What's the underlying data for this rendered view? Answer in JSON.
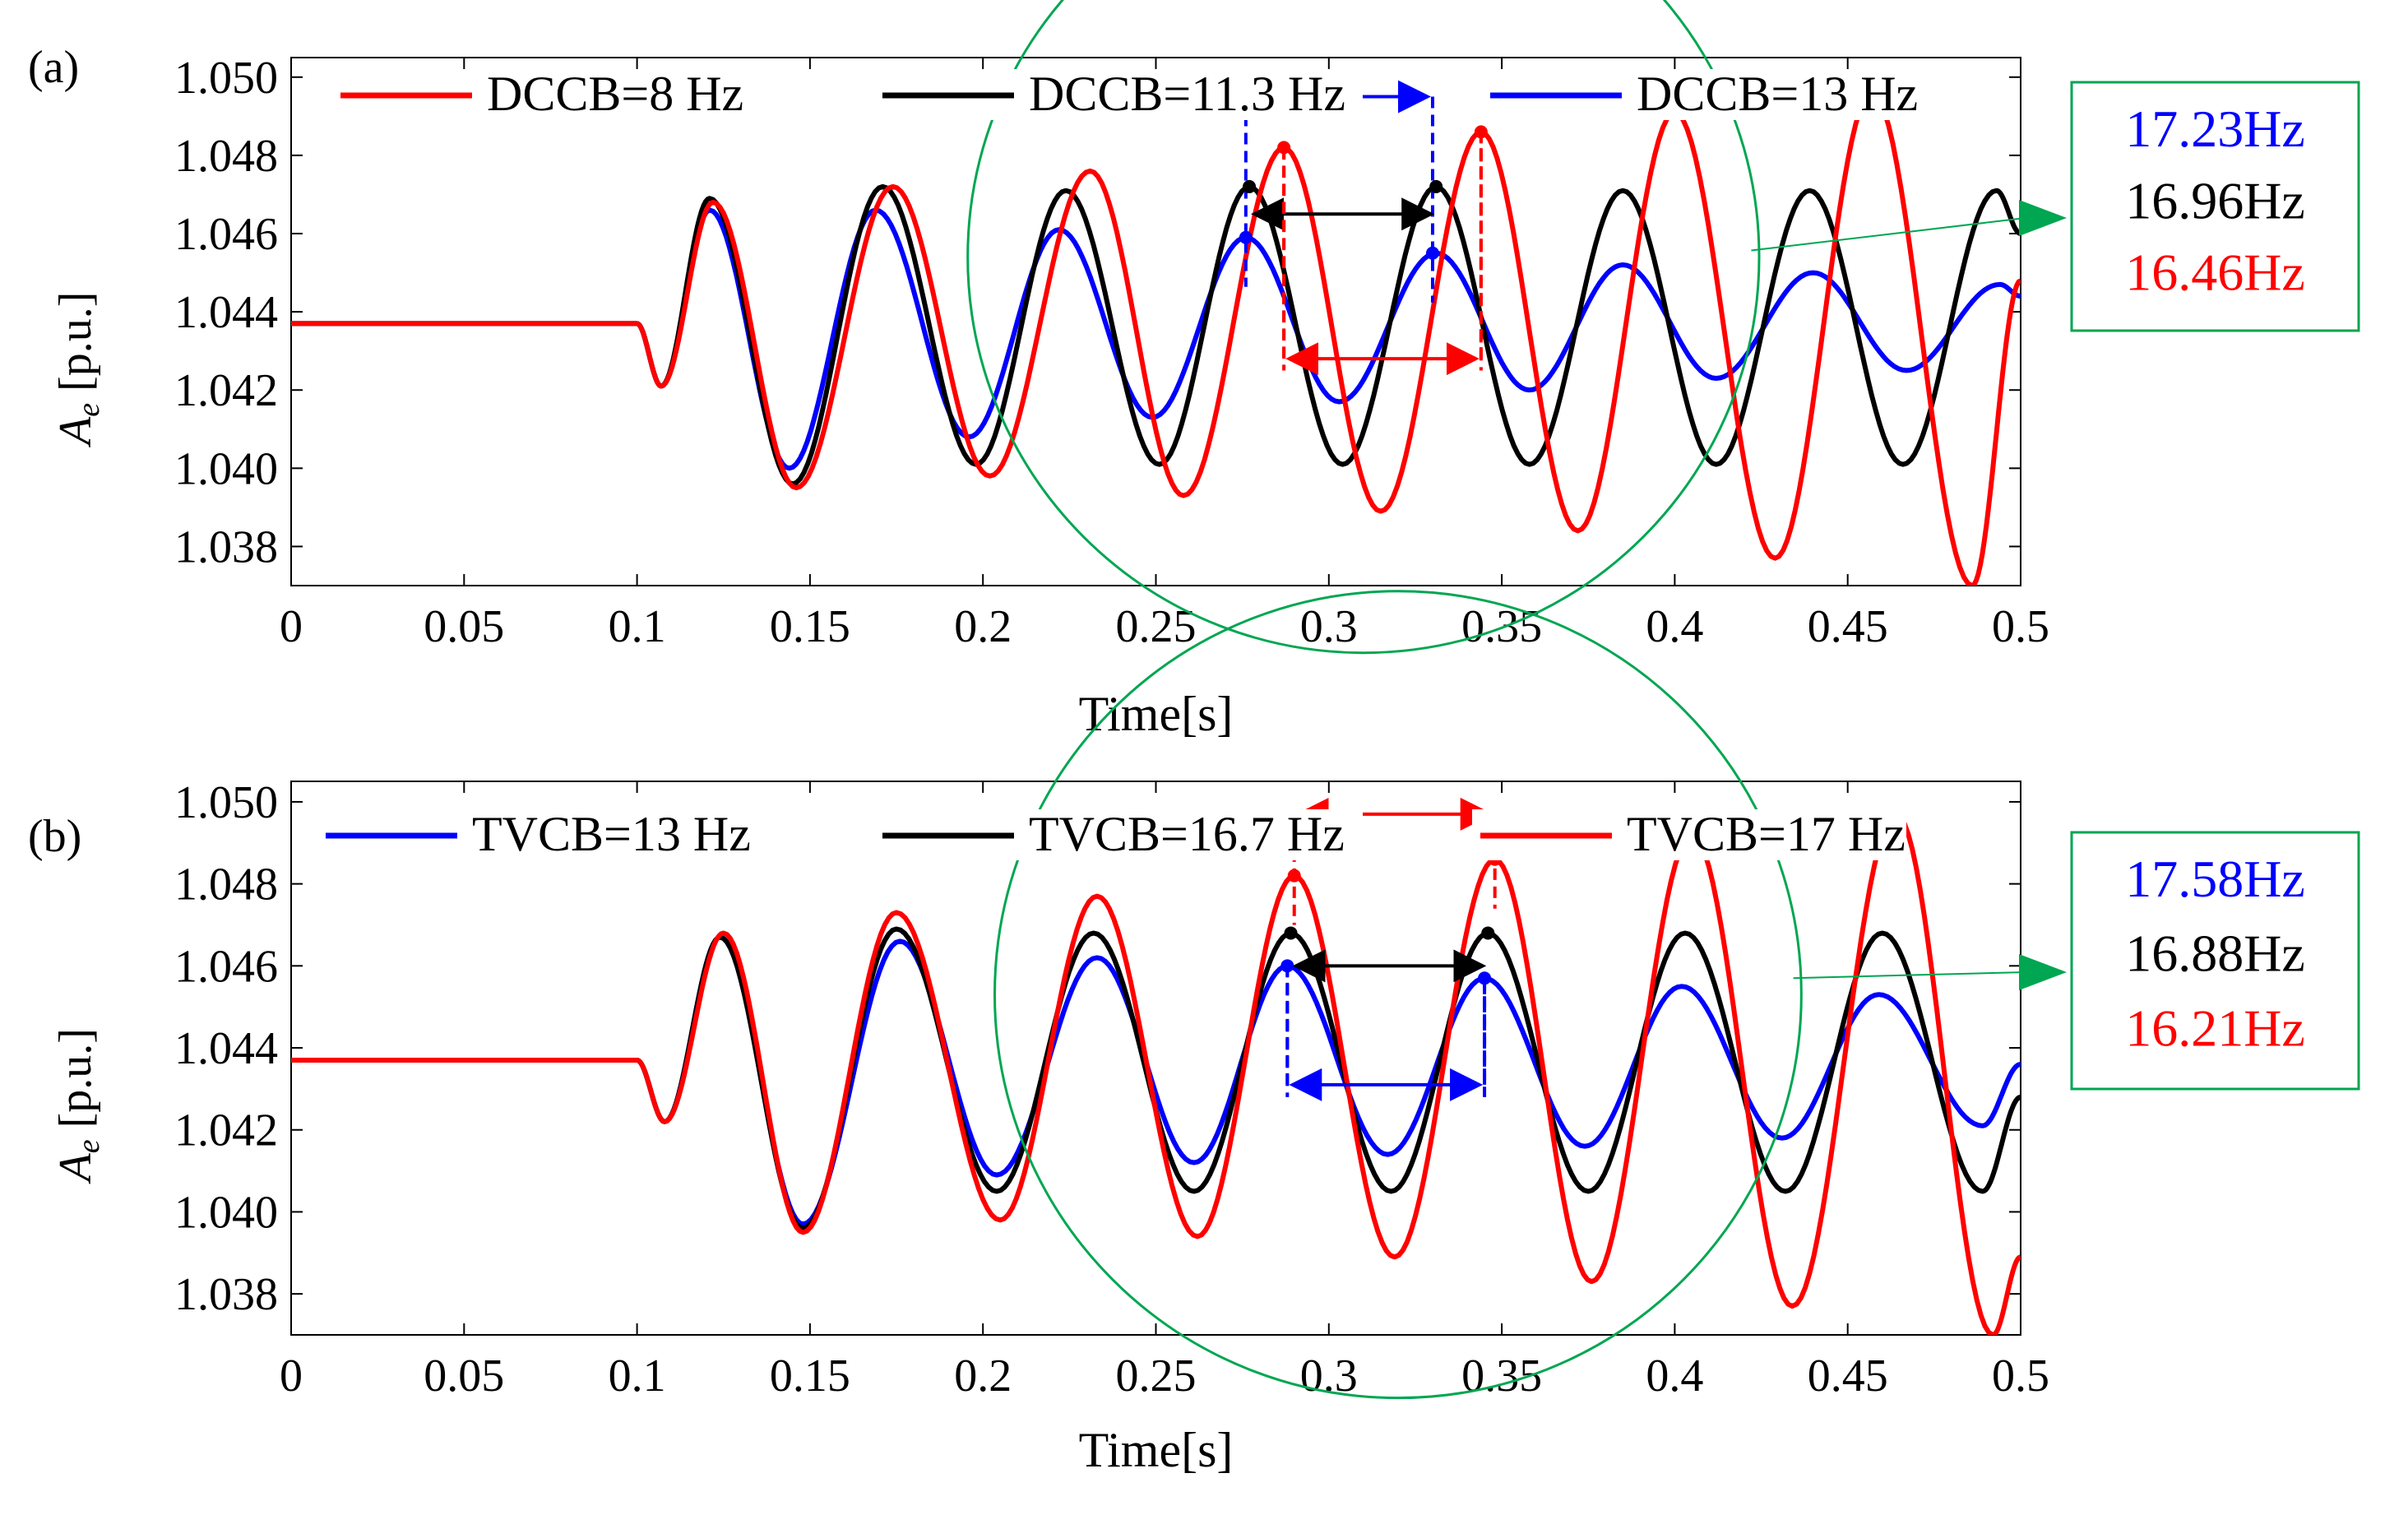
{
  "colors": {
    "red": "#ff0000",
    "black": "#000000",
    "blue": "#0000ff",
    "green": "#00a651",
    "axis": "#000000"
  },
  "chart_data": [
    {
      "panel_label": "(a)",
      "type": "line",
      "xlabel": "Time[s]",
      "ylabel_main": "A",
      "ylabel_sub": "e",
      "ylabel_unit": " [p.u.]",
      "xlim": [
        0,
        0.5
      ],
      "ylim": [
        1.037,
        1.0505
      ],
      "xticks": [
        0,
        0.05,
        0.1,
        0.15,
        0.2,
        0.25,
        0.3,
        0.35,
        0.4,
        0.45,
        0.5
      ],
      "xtick_labels": [
        "0",
        "0.05",
        "0.1",
        "0.15",
        "0.2",
        "0.25",
        "0.3",
        "0.35",
        "0.4",
        "0.45",
        "0.5"
      ],
      "yticks": [
        1.038,
        1.04,
        1.042,
        1.044,
        1.046,
        1.048,
        1.05
      ],
      "ytick_labels": [
        "1.038",
        "1.040",
        "1.042",
        "1.044",
        "1.046",
        "1.048",
        "1.050"
      ],
      "series": [
        {
          "name": "DCCB=8 Hz",
          "color": "red",
          "legend_order": 0,
          "draw_order": 2,
          "steady": 1.0437,
          "onset": 0.1,
          "dip": 1.0421,
          "dip_t": 0.107,
          "peaks": [
            [
              0.122,
              1.0468
            ],
            [
              0.174,
              1.0472
            ],
            [
              0.231,
              1.0476
            ],
            [
              0.287,
              1.0482
            ],
            [
              0.344,
              1.0486
            ],
            [
              0.4,
              1.0491
            ],
            [
              0.457,
              1.0496
            ]
          ],
          "troughs": [
            [
              0.146,
              1.0395
            ],
            [
              0.202,
              1.0398
            ],
            [
              0.258,
              1.0393
            ],
            [
              0.315,
              1.0389
            ],
            [
              0.372,
              1.0384
            ],
            [
              0.429,
              1.0377
            ],
            [
              0.486,
              1.037
            ]
          ],
          "end": [
            0.5,
            1.0448
          ]
        },
        {
          "name": "DCCB=11.3 Hz",
          "color": "black",
          "legend_order": 1,
          "draw_order": 1,
          "steady": 1.0437,
          "onset": 0.1,
          "dip": 1.0421,
          "dip_t": 0.107,
          "peaks": [
            [
              0.121,
              1.0469
            ],
            [
              0.171,
              1.0472
            ],
            [
              0.224,
              1.0471
            ],
            [
              0.277,
              1.0472
            ],
            [
              0.331,
              1.0472
            ],
            [
              0.385,
              1.0471
            ],
            [
              0.439,
              1.0471
            ],
            [
              0.493,
              1.0471
            ]
          ],
          "troughs": [
            [
              0.145,
              1.0396
            ],
            [
              0.198,
              1.0401
            ],
            [
              0.251,
              1.0401
            ],
            [
              0.304,
              1.0401
            ],
            [
              0.358,
              1.0401
            ],
            [
              0.412,
              1.0401
            ],
            [
              0.466,
              1.0401
            ]
          ],
          "end": [
            0.5,
            1.046
          ]
        },
        {
          "name": "DCCB=13 Hz",
          "color": "blue",
          "legend_order": 2,
          "draw_order": 0,
          "steady": 1.0437,
          "onset": 0.1,
          "dip": 1.0421,
          "dip_t": 0.107,
          "peaks": [
            [
              0.121,
              1.0466
            ],
            [
              0.169,
              1.0466
            ],
            [
              0.222,
              1.0461
            ],
            [
              0.276,
              1.0459
            ],
            [
              0.331,
              1.0455
            ],
            [
              0.385,
              1.0452
            ],
            [
              0.44,
              1.045
            ],
            [
              0.494,
              1.0447
            ]
          ],
          "troughs": [
            [
              0.144,
              1.04
            ],
            [
              0.196,
              1.0408
            ],
            [
              0.249,
              1.0413
            ],
            [
              0.303,
              1.0417
            ],
            [
              0.358,
              1.042
            ],
            [
              0.412,
              1.0423
            ],
            [
              0.467,
              1.0425
            ]
          ],
          "end": [
            0.5,
            1.0444
          ]
        }
      ],
      "annotation": {
        "circle_center": [
          0.31,
          1.0454
        ],
        "circle_radius_x": 0.052,
        "brackets": [
          {
            "color": "blue",
            "t1": 0.276,
            "t2": 0.33,
            "y_top": 1.05,
            "y1": 1.0459,
            "y2": 1.0455,
            "arrow_y": 1.0495,
            "style": "dashed"
          },
          {
            "color": "black",
            "t1": 0.277,
            "t2": 0.331,
            "y_top": 1.0472,
            "y1": 1.0472,
            "y2": 1.0472,
            "arrow_y": 1.0465,
            "style": "solid"
          },
          {
            "color": "red",
            "t1": 0.287,
            "t2": 0.344,
            "y_top": 1.0486,
            "y1": 1.0482,
            "y2": 1.0486,
            "arrow_y": 1.0428,
            "style": "dashed",
            "bottom": 1.0425
          }
        ],
        "box_values": [
          {
            "text": "17.23Hz",
            "color": "blue"
          },
          {
            "text": "16.96Hz",
            "color": "black"
          },
          {
            "text": "16.46Hz",
            "color": "red"
          }
        ]
      }
    },
    {
      "panel_label": "(b)",
      "type": "line",
      "xlabel": "Time[s]",
      "ylabel_main": "A",
      "ylabel_sub": "e",
      "ylabel_unit": " [p.u.]",
      "xlim": [
        0,
        0.5
      ],
      "ylim": [
        1.037,
        1.0505
      ],
      "xticks": [
        0,
        0.05,
        0.1,
        0.15,
        0.2,
        0.25,
        0.3,
        0.35,
        0.4,
        0.45,
        0.5
      ],
      "xtick_labels": [
        "0",
        "0.05",
        "0.1",
        "0.15",
        "0.2",
        "0.25",
        "0.3",
        "0.35",
        "0.4",
        "0.45",
        "0.5"
      ],
      "yticks": [
        1.038,
        1.04,
        1.042,
        1.044,
        1.046,
        1.048,
        1.05
      ],
      "ytick_labels": [
        "1.038",
        "1.040",
        "1.042",
        "1.044",
        "1.046",
        "1.048",
        "1.050"
      ],
      "series": [
        {
          "name": "TVCB=13 Hz",
          "color": "blue",
          "legend_order": 0,
          "draw_order": 0,
          "steady": 1.0437,
          "onset": 0.1,
          "dip": 1.0422,
          "dip_t": 0.108,
          "peaks": [
            [
              0.124,
              1.0467
            ],
            [
              0.176,
              1.0466
            ],
            [
              0.233,
              1.0462
            ],
            [
              0.288,
              1.046
            ],
            [
              0.345,
              1.0457
            ],
            [
              0.402,
              1.0455
            ],
            [
              0.459,
              1.0453
            ]
          ],
          "troughs": [
            [
              0.148,
              1.0397
            ],
            [
              0.204,
              1.0409
            ],
            [
              0.261,
              1.0412
            ],
            [
              0.317,
              1.0414
            ],
            [
              0.374,
              1.0416
            ],
            [
              0.431,
              1.0418
            ],
            [
              0.489,
              1.0421
            ]
          ],
          "end": [
            0.5,
            1.0436
          ]
        },
        {
          "name": "TVCB=16.7 Hz",
          "color": "black",
          "legend_order": 1,
          "draw_order": 1,
          "steady": 1.0437,
          "onset": 0.1,
          "dip": 1.0422,
          "dip_t": 0.108,
          "peaks": [
            [
              0.124,
              1.0467
            ],
            [
              0.175,
              1.0469
            ],
            [
              0.232,
              1.0468
            ],
            [
              0.289,
              1.0468
            ],
            [
              0.346,
              1.0468
            ],
            [
              0.403,
              1.0468
            ],
            [
              0.46,
              1.0468
            ]
          ],
          "troughs": [
            [
              0.148,
              1.0396
            ],
            [
              0.204,
              1.0405
            ],
            [
              0.261,
              1.0405
            ],
            [
              0.318,
              1.0405
            ],
            [
              0.375,
              1.0405
            ],
            [
              0.432,
              1.0405
            ],
            [
              0.489,
              1.0405
            ]
          ],
          "end": [
            0.5,
            1.0428
          ]
        },
        {
          "name": "TVCB=17 Hz",
          "color": "red",
          "legend_order": 2,
          "draw_order": 2,
          "steady": 1.0437,
          "onset": 0.1,
          "dip": 1.0422,
          "dip_t": 0.108,
          "peaks": [
            [
              0.125,
              1.0468
            ],
            [
              0.175,
              1.0473
            ],
            [
              0.233,
              1.0477
            ],
            [
              0.29,
              1.0482
            ],
            [
              0.348,
              1.0486
            ],
            [
              0.405,
              1.0492
            ],
            [
              0.464,
              1.0497
            ]
          ],
          "troughs": [
            [
              0.148,
              1.0395
            ],
            [
              0.205,
              1.0398
            ],
            [
              0.262,
              1.0394
            ],
            [
              0.319,
              1.0389
            ],
            [
              0.376,
              1.0383
            ],
            [
              0.434,
              1.0377
            ],
            [
              0.492,
              1.037
            ]
          ],
          "end": [
            0.5,
            1.0389
          ]
        }
      ],
      "annotation": {
        "circle_center": [
          0.32,
          1.0453
        ],
        "circle_radius_x": 0.053,
        "brackets": [
          {
            "color": "red",
            "t1": 0.29,
            "t2": 0.348,
            "y_top": 1.05,
            "y1": 1.0482,
            "y2": 1.0486,
            "arrow_y": 1.0497,
            "style": "dashed"
          },
          {
            "color": "black",
            "t1": 0.289,
            "t2": 0.346,
            "y_top": 1.0468,
            "y1": 1.0468,
            "y2": 1.0468,
            "arrow_y": 1.046,
            "style": "solid"
          },
          {
            "color": "blue",
            "t1": 0.288,
            "t2": 0.345,
            "y_top": 1.046,
            "y1": 1.046,
            "y2": 1.0457,
            "arrow_y": 1.0431,
            "style": "dashed",
            "bottom": 1.0428
          }
        ],
        "box_values": [
          {
            "text": "17.58Hz",
            "color": "blue"
          },
          {
            "text": "16.88Hz",
            "color": "black"
          },
          {
            "text": "16.21Hz",
            "color": "red"
          }
        ]
      }
    }
  ]
}
